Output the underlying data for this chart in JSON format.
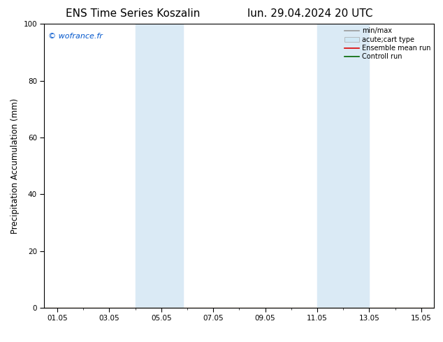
{
  "title_left": "ENS Time Series Koszalin",
  "title_right": "lun. 29.04.2024 20 UTC",
  "ylabel": "Precipitation Accumulation (mm)",
  "ylim": [
    0,
    100
  ],
  "yticks": [
    0,
    20,
    40,
    60,
    80,
    100
  ],
  "xtick_labels": [
    "01.05",
    "03.05",
    "05.05",
    "07.05",
    "09.05",
    "11.05",
    "13.05",
    "15.05"
  ],
  "xtick_positions": [
    1,
    3,
    5,
    7,
    9,
    11,
    13,
    15
  ],
  "xlim": [
    0.5,
    15.5
  ],
  "shaded_bands": [
    {
      "start": 4.0,
      "end": 5.83
    },
    {
      "start": 11.0,
      "end": 13.0
    }
  ],
  "shade_color": "#daeaf5",
  "copyright_text": "© wofrance.fr",
  "copyright_color": "#0055cc",
  "legend_items": [
    {
      "label": "min/max",
      "color": "#999999",
      "lw": 1.2,
      "type": "line"
    },
    {
      "label": "acute;cart type",
      "facecolor": "#d0e8f5",
      "edgecolor": "#aaaaaa",
      "type": "patch"
    },
    {
      "label": "Ensemble mean run",
      "color": "#dd0000",
      "lw": 1.2,
      "type": "line"
    },
    {
      "label": "Controll run",
      "color": "#006600",
      "lw": 1.2,
      "type": "line"
    }
  ],
  "bg_color": "#ffffff",
  "spine_color": "#000000",
  "title_fontsize": 11,
  "tick_fontsize": 7.5,
  "ylabel_fontsize": 8.5,
  "legend_fontsize": 7,
  "copyright_fontsize": 8
}
